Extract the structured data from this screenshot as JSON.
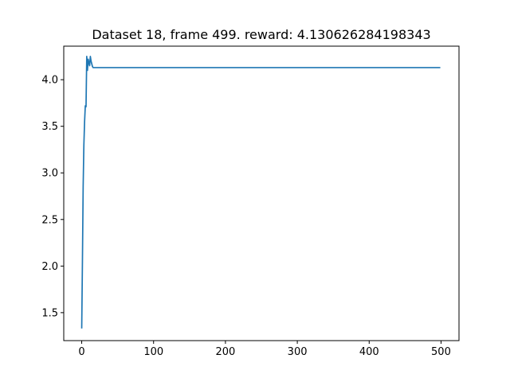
{
  "chart_data": {
    "type": "line",
    "title": "Dataset 18, frame 499. reward: 4.130626284198343",
    "xlabel": "",
    "ylabel": "",
    "xlim": [
      -25,
      525
    ],
    "ylim": [
      1.2,
      4.36
    ],
    "x_ticks": [
      0,
      100,
      200,
      300,
      400,
      500
    ],
    "x_tick_labels": [
      "0",
      "100",
      "200",
      "300",
      "400",
      "500"
    ],
    "y_ticks": [
      1.5,
      2.0,
      2.5,
      3.0,
      3.5,
      4.0
    ],
    "y_tick_labels": [
      "1.5",
      "2.0",
      "2.5",
      "3.0",
      "3.5",
      "4.0"
    ],
    "grid": false,
    "legend": "none",
    "series": [
      {
        "color": "#1f77b4",
        "x": [
          0,
          1,
          2,
          3,
          4,
          5,
          6,
          7,
          8,
          9,
          10,
          11,
          12,
          13,
          14,
          15,
          16,
          17,
          18,
          20,
          25,
          30,
          40,
          50,
          100,
          200,
          300,
          400,
          499
        ],
        "y": [
          1.33,
          2.05,
          2.85,
          3.3,
          3.55,
          3.72,
          3.71,
          4.25,
          4.1,
          4.22,
          4.18,
          4.15,
          4.25,
          4.2,
          4.17,
          4.14,
          4.13,
          4.13,
          4.13,
          4.13,
          4.13,
          4.13,
          4.13,
          4.13,
          4.13,
          4.13,
          4.13,
          4.13,
          4.13
        ]
      }
    ]
  }
}
